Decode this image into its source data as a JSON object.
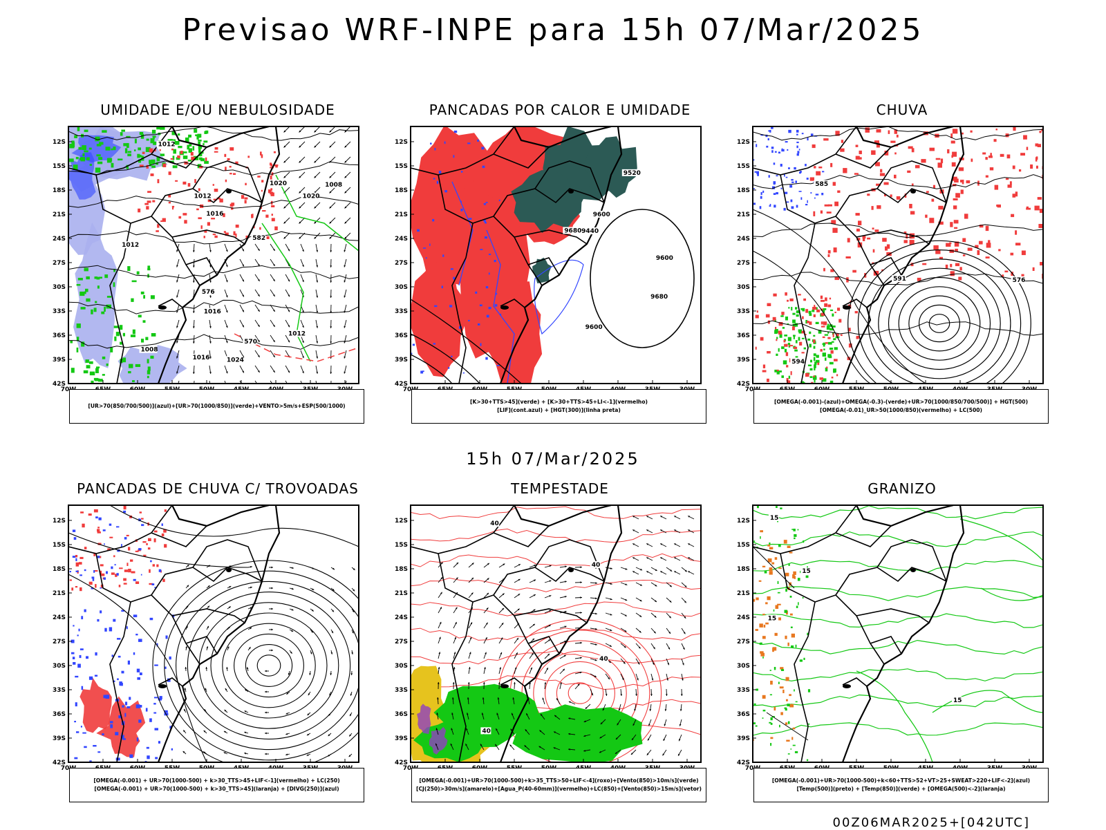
{
  "header": {
    "title": "Previsao WRF-INPE  para 15h 07/Mar/2025"
  },
  "mid_header": {
    "title": "15h 07/Mar/2025"
  },
  "footer": {
    "text": "00Z06MAR2025+[042UTC]"
  },
  "axes": {
    "lat_labels": [
      "12S",
      "15S",
      "18S",
      "21S",
      "24S",
      "27S",
      "30S",
      "33S",
      "36S",
      "39S",
      "42S"
    ],
    "lon_labels": [
      "70W",
      "65W",
      "60W",
      "55W",
      "50W",
      "45W",
      "40W",
      "35W",
      "30W"
    ]
  },
  "colors": {
    "red": "#f03c3c",
    "green": "#14c814",
    "blue": "#3246ff",
    "lavender": "#aab0ee",
    "darkteal": "#2c5a55",
    "yellow": "#e6c31e",
    "orange": "#e87820",
    "purple": "#9040c0"
  },
  "panels": [
    {
      "id": "umidade",
      "title": "UMIDADE E/OU NEBULOSIDADE",
      "legend": [
        "[UR>70(850/700/500)](azul)+[UR>70(1000/850)](verde)+VENTO>5m/s+ESP(500/1000)"
      ],
      "labels": [
        "1012",
        "1012",
        "1016",
        "1020",
        "1016",
        "1008",
        "1012",
        "1020",
        "1016",
        "1024",
        "1012",
        "1008",
        "576",
        "570",
        "582"
      ]
    },
    {
      "id": "pancadas_calor",
      "title": "PANCADAS POR CALOR E UMIDADE",
      "legend": [
        "[K>30+TTS>45](verde) + [K>30+TTS>45+LI<-1](vermelho)",
        "[LIF](cont.azul) + [HGT(300)](linha preta)"
      ],
      "labels": [
        "9600",
        "9600",
        "9520",
        "9440",
        "9600",
        "9680",
        "9680"
      ]
    },
    {
      "id": "chuva",
      "title": "CHUVA",
      "legend": [
        "[OMEGA(-0.001)-(azul)+OMEGA(-0.3)-(verde)+UR>70(1000/850/700/500)] + HGT(500)",
        "[OMEGA(-0.01)_UR>50(1000/850)(vermelho) + LC(500)"
      ],
      "labels": [
        "585",
        "576",
        "594",
        "591"
      ]
    },
    {
      "id": "pancadas_trovoadas",
      "title": "PANCADAS DE CHUVA C/ TROVOADAS",
      "legend": [
        "[OMEGA(-0.001) + UR>70(1000-500) + k>30_TTS>45+LIF<-1](vermelho) + LC(250)",
        "[OMEGA(-0.001) + UR>70(1000-500) + k>30_TTS>45](laranja) + [DIVG(250)](azul)"
      ],
      "labels": []
    },
    {
      "id": "tempestade",
      "title": "TEMPESTADE",
      "legend": [
        "[OMEGA(-0.001)+UR>70(1000-500)+k>35_TTS>50+LIF<-4](roxo)+[Vento(850)>10m/s](verde)",
        "[CJ(250)>30m/s](amarelo)+[Agua_P(40-60mm)](vermelho)+LC(850)+[Vento(850)>15m/s](vetor)"
      ],
      "labels": [
        "40",
        "40",
        "40",
        "40"
      ]
    },
    {
      "id": "granizo",
      "title": "GRANIZO",
      "legend": [
        "[OMEGA(-0.001)+UR>70(1000-500)+k<60+TTS>52+VT>25+SWEAT>220+LIF<-2](azul)",
        "[Temp(500)](preto) + [Temp(850)](verde) + [OMEGA(500)<-2](laranja)"
      ],
      "labels": [
        "15",
        "15",
        "15",
        "15"
      ]
    }
  ]
}
